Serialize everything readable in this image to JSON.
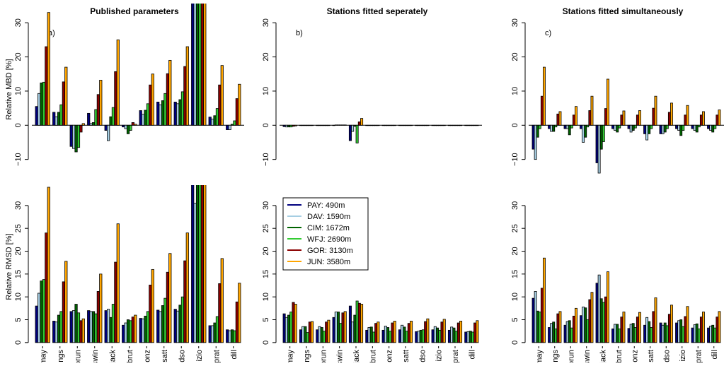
{
  "chart_data": [
    {
      "type": "bar",
      "title": "Published parameters",
      "panel_label": "a)",
      "ylabel": "Relative MBD [%]",
      "zero_line": true,
      "ylim": [
        -14,
        35
      ],
      "yticks": [
        {
          "value": -10,
          "label": "−10"
        },
        0,
        10,
        20,
        30
      ],
      "series": [
        {
          "color": "#00007f",
          "values": [
            5.5,
            3.8,
            -6.2,
            3.5,
            -1.5,
            -0.5,
            4.3,
            6.8,
            6.8,
            36,
            2.4,
            -1.3
          ]
        },
        {
          "color": "#a6cee3",
          "values": [
            9.3,
            2.5,
            -6.8,
            0.5,
            -4.5,
            -1,
            3.2,
            6,
            6.3,
            36,
            1.8,
            -1.3
          ]
        },
        {
          "color": "#006400",
          "values": [
            12.4,
            3.8,
            -7.8,
            0.8,
            2.5,
            -2.5,
            4.4,
            7.2,
            7.5,
            36,
            2.8,
            0.3
          ]
        },
        {
          "color": "#33cc33",
          "values": [
            12.6,
            6,
            -6.5,
            4.6,
            5.2,
            -1.5,
            6.3,
            9.3,
            9.8,
            36,
            4.9,
            1.3
          ]
        },
        {
          "color": "#8b0000",
          "values": [
            23,
            12.7,
            -2,
            9,
            15.7,
            0.8,
            11.8,
            15.1,
            17.2,
            36,
            11.8,
            7.8
          ]
        },
        {
          "color": "#ffa500",
          "values": [
            33,
            17,
            0.5,
            13.2,
            25,
            0.3,
            15,
            19,
            23,
            36,
            17.5,
            12
          ]
        }
      ]
    },
    {
      "type": "bar",
      "title": "Stations fitted seperately",
      "panel_label": "b)",
      "zero_line": true,
      "ylim": [
        -14,
        35
      ],
      "yticks": [
        {
          "value": -10,
          "label": "−10"
        },
        0,
        10,
        20,
        30
      ],
      "series": [
        {
          "color": "#00007f",
          "values": [
            -0.4,
            -0.1,
            -0.1,
            -0.1,
            -4.5,
            -0.1,
            -0.1,
            -0.1,
            -0.1,
            -0.1,
            -0.1,
            -0.1
          ]
        },
        {
          "color": "#a6cee3",
          "values": [
            -0.5,
            -0.1,
            -0.1,
            0.1,
            -1.8,
            -0.1,
            -0.1,
            -0.1,
            -0.1,
            -0.1,
            -0.1,
            -0.1
          ]
        },
        {
          "color": "#006400",
          "values": [
            -0.5,
            -0.1,
            -0.1,
            0.1,
            -0.3,
            -0.1,
            -0.1,
            -0.1,
            -0.1,
            -0.1,
            -0.1,
            -0.1
          ]
        },
        {
          "color": "#33cc33",
          "values": [
            -0.5,
            -0.1,
            -0.1,
            0.1,
            -5.2,
            -0.1,
            -0.1,
            -0.1,
            -0.1,
            -0.1,
            -0.1,
            -0.1
          ]
        },
        {
          "color": "#8b0000",
          "values": [
            -0.3,
            -0.1,
            -0.1,
            0.1,
            1,
            -0.1,
            -0.1,
            -0.1,
            -0.1,
            -0.1,
            -0.1,
            -0.1
          ]
        },
        {
          "color": "#ffa500",
          "values": [
            -0.2,
            -0.1,
            -0.1,
            0.1,
            2,
            -0.1,
            -0.1,
            -0.1,
            -0.1,
            -0.1,
            -0.1,
            -0.1
          ]
        }
      ]
    },
    {
      "type": "bar",
      "title": "Stations fitted simultaneously",
      "panel_label": "c)",
      "zero_line": true,
      "ylim": [
        -14,
        35
      ],
      "yticks": [
        {
          "value": -10,
          "label": "−10"
        },
        0,
        10,
        20,
        30
      ],
      "series": [
        {
          "color": "#00007f",
          "values": [
            -7,
            -1,
            -1,
            -1,
            -11,
            -1,
            -1,
            -2.5,
            -2.5,
            -1,
            -1,
            -1
          ]
        },
        {
          "color": "#a6cee3",
          "values": [
            -10,
            -1.8,
            -1,
            -5,
            -14,
            -1.5,
            -2,
            -4.3,
            -2.5,
            -1.5,
            -1.5,
            -1.5
          ]
        },
        {
          "color": "#006400",
          "values": [
            -3.5,
            -1.8,
            -2.8,
            -3.5,
            -7,
            -2,
            -1.5,
            -2.5,
            -2,
            -3,
            -2,
            -2
          ]
        },
        {
          "color": "#33cc33",
          "values": [
            -1,
            -0.5,
            -0.8,
            -0.5,
            -4.8,
            -0.8,
            -0.8,
            -1,
            -1,
            -1.5,
            -0.5,
            -1
          ]
        },
        {
          "color": "#8b0000",
          "values": [
            8.5,
            3.3,
            3,
            4.3,
            4.9,
            3,
            3,
            5,
            3.8,
            3,
            3,
            3
          ]
        },
        {
          "color": "#ffa500",
          "values": [
            17,
            4,
            5.5,
            8.5,
            13.5,
            4.2,
            4.3,
            8.5,
            6.5,
            5.8,
            4,
            4.5
          ]
        }
      ]
    },
    {
      "type": "bar",
      "ylabel": "Relative RMSD [%]",
      "ylim": [
        -0.8,
        34
      ],
      "yticks": [
        0,
        5,
        10,
        15,
        20,
        25,
        30
      ],
      "categories": [
        "may",
        "ngs",
        "orun",
        "swin",
        "jack",
        "brut",
        "onz",
        "satt",
        "idso",
        "izio",
        "prat",
        "dill"
      ],
      "series": [
        {
          "color": "#00007f",
          "values": [
            8,
            4.7,
            6.8,
            7,
            7,
            3.8,
            5.3,
            7.1,
            7.3,
            36,
            3.7,
            2.8
          ]
        },
        {
          "color": "#a6cee3",
          "values": [
            10.8,
            4.5,
            7,
            6.8,
            7.3,
            4.3,
            5.2,
            6.8,
            6.9,
            30.5,
            3.7,
            2.6
          ]
        },
        {
          "color": "#006400",
          "values": [
            13.5,
            6,
            8.4,
            6.8,
            5.5,
            5,
            5.8,
            8.1,
            8.2,
            36,
            4.3,
            2.8
          ]
        },
        {
          "color": "#33cc33",
          "values": [
            13.8,
            6.8,
            6.5,
            6.3,
            8.4,
            4.8,
            6.8,
            9.7,
            10,
            36,
            5.7,
            2.6
          ]
        },
        {
          "color": "#8b0000",
          "values": [
            24,
            13.3,
            4.8,
            11.2,
            17.6,
            5.6,
            12.6,
            15.4,
            17.9,
            36,
            12.9,
            8.9
          ]
        },
        {
          "color": "#ffa500",
          "values": [
            34,
            17.8,
            5.2,
            15,
            26,
            6,
            16,
            19.5,
            24,
            36,
            18.4,
            13
          ]
        }
      ]
    },
    {
      "type": "bar",
      "legend": "top-left",
      "ylim": [
        -0.8,
        34
      ],
      "yticks": [
        0,
        5,
        10,
        15,
        20,
        25,
        30
      ],
      "categories": [
        "may",
        "ngs",
        "orun",
        "swin",
        "jack",
        "brut",
        "onz",
        "satt",
        "idso",
        "izio",
        "prat",
        "dill"
      ],
      "series": [
        {
          "name": "PAY: 490m",
          "color": "#00007f",
          "values": [
            6.3,
            2.8,
            2.8,
            5.5,
            8,
            2.7,
            2.7,
            2.8,
            2.4,
            2.8,
            2.7,
            2.3
          ]
        },
        {
          "name": "DAV: 1590m",
          "color": "#a6cee3",
          "values": [
            5.5,
            3.5,
            3.5,
            6.7,
            4.5,
            3.3,
            3.6,
            3.8,
            2.5,
            3.5,
            3.4,
            2.4
          ]
        },
        {
          "name": "CIM: 1672m",
          "color": "#006400",
          "values": [
            6,
            3.5,
            3.3,
            6.7,
            6,
            3.4,
            3.3,
            3.4,
            2.7,
            3.2,
            3.2,
            2.5
          ]
        },
        {
          "name": "WFJ: 2690m",
          "color": "#33cc33",
          "values": [
            6.7,
            2.2,
            2.5,
            4.2,
            9.1,
            2.3,
            2.5,
            2.5,
            2.8,
            2.7,
            2.5,
            2.3
          ]
        },
        {
          "name": "GOR: 3130m",
          "color": "#8b0000",
          "values": [
            8.8,
            4.5,
            4.5,
            6.5,
            8.6,
            4.2,
            4.3,
            4.2,
            4.6,
            4.5,
            4.3,
            4.3
          ]
        },
        {
          "name": "JUN: 3580m",
          "color": "#ffa500",
          "values": [
            8.4,
            4.6,
            4.9,
            6.8,
            8.4,
            4.5,
            4.7,
            4.7,
            5.2,
            5.1,
            4.7,
            4.8
          ]
        }
      ]
    },
    {
      "type": "bar",
      "ylim": [
        -0.8,
        34
      ],
      "yticks": [
        0,
        5,
        10,
        15,
        20,
        25,
        30
      ],
      "categories": [
        "may",
        "ngs",
        "orun",
        "swin",
        "jack",
        "brut",
        "onz",
        "satt",
        "idso",
        "izio",
        "prat",
        "dill"
      ],
      "series": [
        {
          "color": "#00007f",
          "values": [
            9.7,
            3.3,
            3.8,
            5.9,
            13,
            3,
            3.1,
            3.8,
            4.3,
            4.3,
            3.2,
            3.2
          ]
        },
        {
          "color": "#a6cee3",
          "values": [
            11.2,
            4.2,
            4.6,
            7.8,
            14.8,
            4,
            4,
            5.5,
            3.8,
            4.8,
            3.9,
            3.6
          ]
        },
        {
          "color": "#006400",
          "values": [
            6.9,
            4.5,
            4.8,
            7.6,
            9.6,
            4,
            4.2,
            4.6,
            4.3,
            5,
            4.1,
            3.8
          ]
        },
        {
          "color": "#33cc33",
          "values": [
            6.7,
            3,
            3.2,
            5,
            8.8,
            3,
            3.3,
            3.3,
            3.7,
            3.5,
            3,
            3.2
          ]
        },
        {
          "color": "#8b0000",
          "values": [
            11.9,
            6.3,
            5.8,
            9.4,
            10,
            5.6,
            5.6,
            6.8,
            6.2,
            5.7,
            5.6,
            5.6
          ]
        },
        {
          "color": "#ffa500",
          "values": [
            18.5,
            6.8,
            7.5,
            11,
            15.5,
            6.7,
            6.6,
            9.8,
            8.2,
            7.9,
            6.7,
            6.8
          ]
        }
      ]
    }
  ]
}
